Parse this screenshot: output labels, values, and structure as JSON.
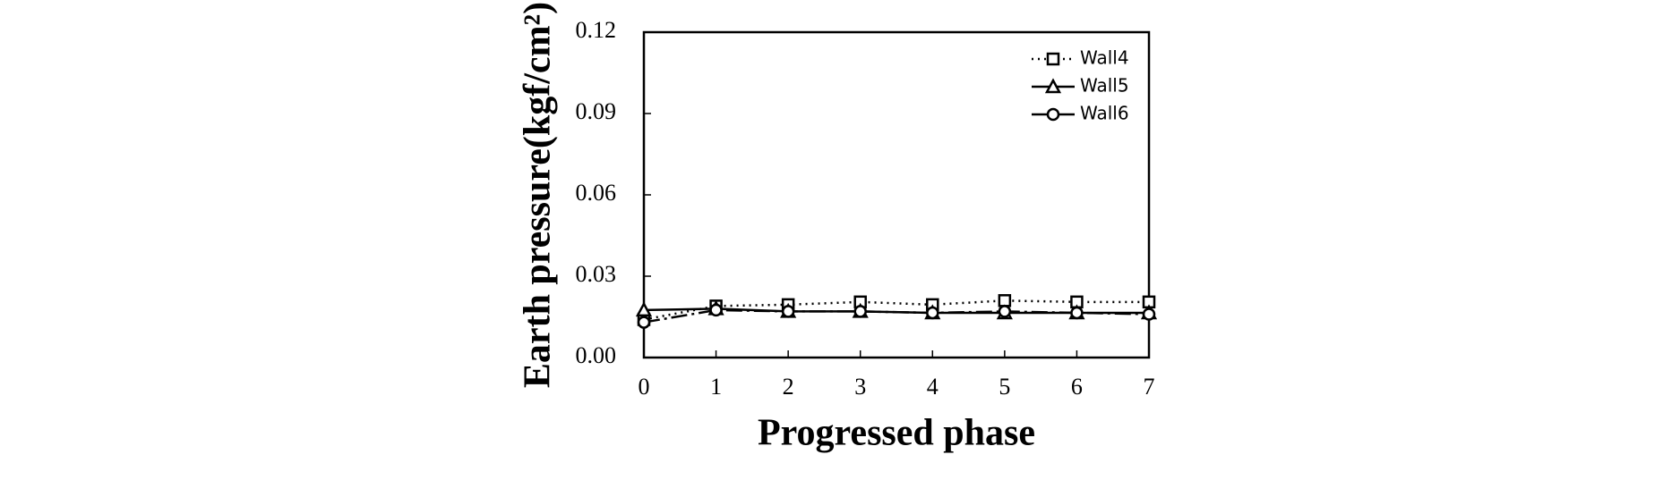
{
  "chart_data": {
    "type": "line",
    "x_label": "Progressed phase",
    "y_label": "Earth pressure(kgf/cm²)",
    "x": [
      0,
      1,
      2,
      3,
      4,
      5,
      6,
      7
    ],
    "series": [
      {
        "name": "Wall4",
        "color": "#000000",
        "line_style": "dotted",
        "marker": "square",
        "values": [
          0.014,
          0.019,
          0.0195,
          0.0205,
          0.0195,
          0.021,
          0.0205,
          0.0205
        ]
      },
      {
        "name": "Wall5",
        "color": "#000000",
        "line_style": "solid",
        "marker": "triangle",
        "values": [
          0.0175,
          0.018,
          0.017,
          0.017,
          0.0165,
          0.0165,
          0.0165,
          0.0165
        ]
      },
      {
        "name": "Wall6",
        "color": "#000000",
        "line_style": "dashdot",
        "marker": "circle",
        "values": [
          0.013,
          0.0175,
          0.017,
          0.017,
          0.0165,
          0.017,
          0.0165,
          0.016
        ]
      }
    ],
    "xlim": [
      0,
      7
    ],
    "xticks": [
      0,
      1,
      2,
      3,
      4,
      5,
      6,
      7
    ],
    "ylim": [
      0,
      0.12
    ],
    "yticks": [
      {
        "value": 0,
        "label": "0.00"
      },
      0.03,
      0.06,
      0.09,
      0.12
    ],
    "grid": false,
    "legend": "top-right"
  }
}
